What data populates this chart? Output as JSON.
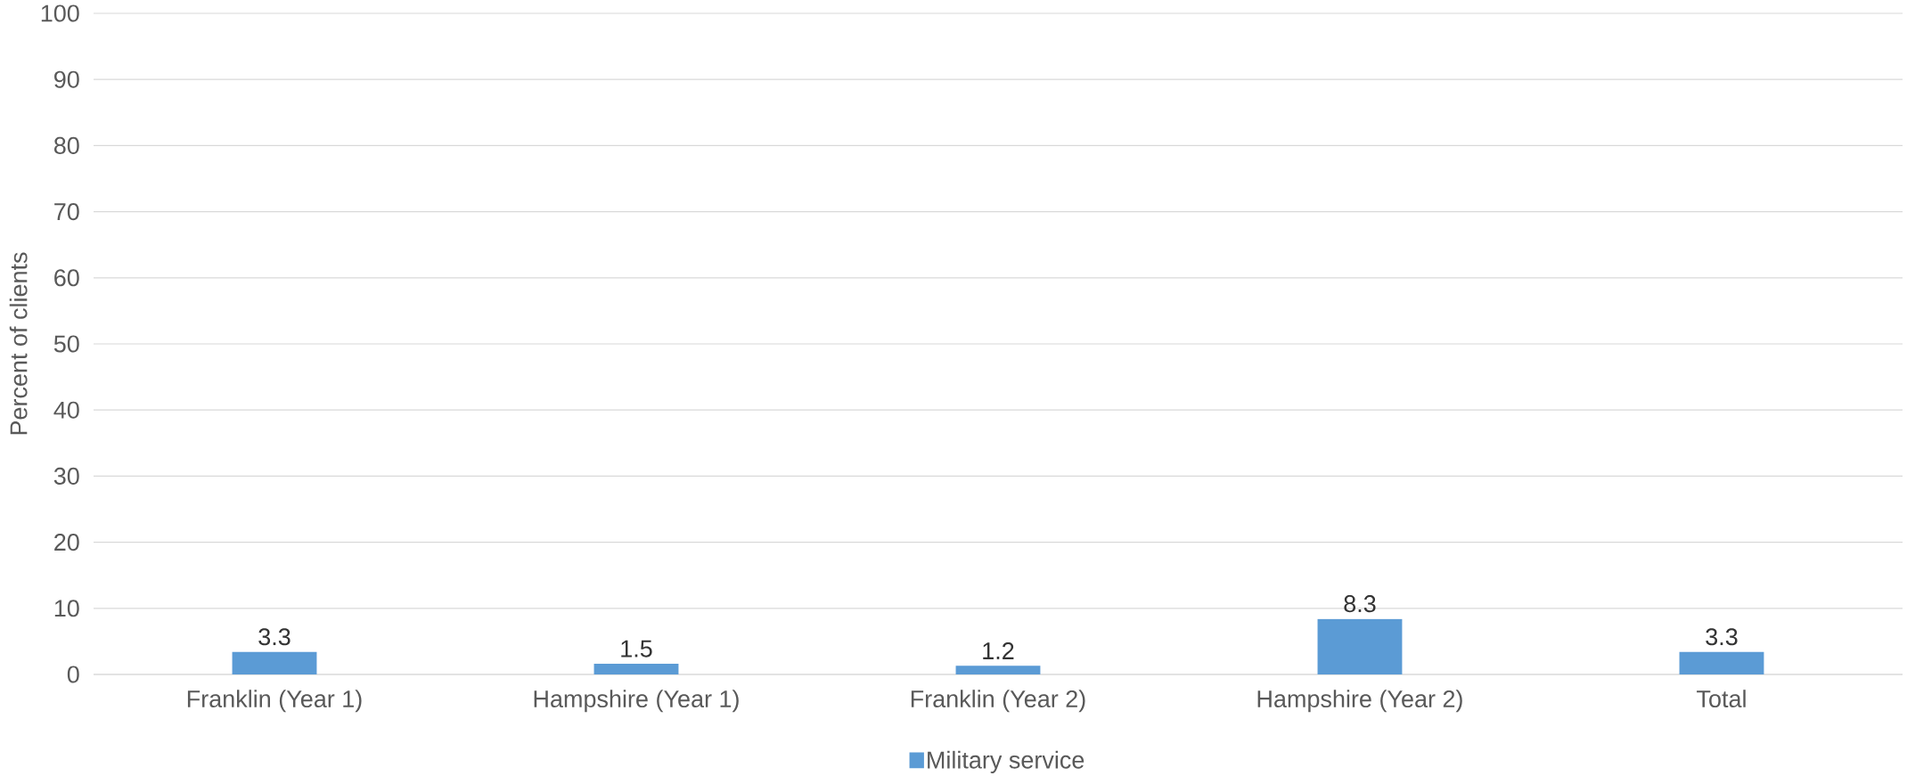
{
  "chart_data": {
    "type": "bar",
    "ylabel": "Percent of clients",
    "categories": [
      "Franklin (Year 1)",
      "Hampshire (Year 1)",
      "Franklin (Year 2)",
      "Hampshire (Year 2)",
      "Total"
    ],
    "series": [
      {
        "name": "Military service",
        "color": "#5b9bd5",
        "values": [
          3.3,
          1.5,
          1.2,
          8.3,
          3.3
        ]
      }
    ],
    "ylim": [
      0,
      100
    ],
    "yticks": [
      0,
      10,
      20,
      30,
      40,
      50,
      60,
      70,
      80,
      90,
      100
    ],
    "grid": "y",
    "legend": "bottom",
    "data_labels": true
  }
}
